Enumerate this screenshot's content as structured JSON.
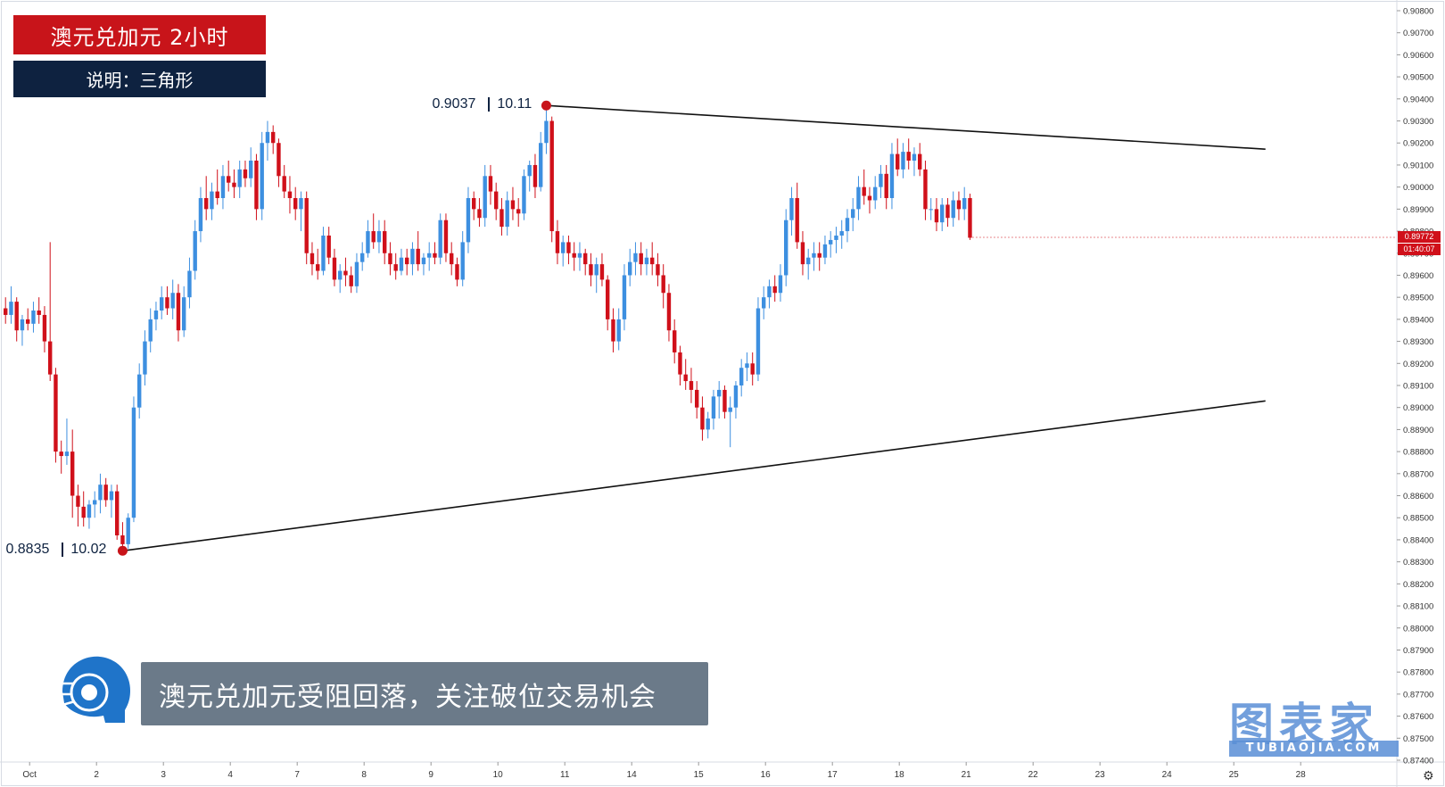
{
  "title": "澳元兑加元 2小时",
  "subtitle": "说明：三角形",
  "caption": "澳元兑加元受阻回落，关注破位交易机会",
  "logo": {
    "main": "图表家",
    "sub": "TUBIAOJIA.COM"
  },
  "annotations": {
    "high": {
      "price": "0.9037",
      "value": "10.11"
    },
    "low": {
      "price": "0.8835",
      "value": "10.02"
    }
  },
  "price_tags": {
    "last": "0.89772",
    "countdown": "01:40:07"
  },
  "colors": {
    "up": "#3d8fe0",
    "down": "#d0101a",
    "title_bg": "#c8141a",
    "sub_bg": "#0e2240"
  },
  "chart_data": {
    "type": "candlestick",
    "symbol": "AUDCAD",
    "timeframe": "2H",
    "y_axis": {
      "min": 0.874,
      "max": 0.908,
      "ticks": [
        "0.90800",
        "0.90700",
        "0.90600",
        "0.90500",
        "0.90400",
        "0.90300",
        "0.90200",
        "0.90100",
        "0.90000",
        "0.89900",
        "0.89800",
        "0.89700",
        "0.89600",
        "0.89500",
        "0.89400",
        "0.89300",
        "0.89200",
        "0.89100",
        "0.89000",
        "0.88900",
        "0.88800",
        "0.88700",
        "0.88600",
        "0.88500",
        "0.88400",
        "0.88300",
        "0.88200",
        "0.88100",
        "0.88000",
        "0.87900",
        "0.87800",
        "0.87700",
        "0.87600",
        "0.87500",
        "0.87400"
      ]
    },
    "x_ticks": [
      "Oct",
      "2",
      "3",
      "4",
      "7",
      "8",
      "9",
      "10",
      "11",
      "14",
      "15",
      "16",
      "17",
      "18",
      "21",
      "22",
      "23",
      "24",
      "25",
      "28"
    ],
    "x_tick_index": [
      0,
      12,
      24,
      36,
      48,
      60,
      72,
      84,
      96,
      108,
      120,
      132,
      144,
      156,
      168,
      180,
      192,
      204,
      216,
      228
    ],
    "candles": [
      [
        0.8945,
        0.895,
        0.8938,
        0.8942
      ],
      [
        0.8942,
        0.8955,
        0.8938,
        0.8948
      ],
      [
        0.8948,
        0.895,
        0.893,
        0.8935
      ],
      [
        0.8935,
        0.8942,
        0.8928,
        0.894
      ],
      [
        0.894,
        0.8945,
        0.8935,
        0.8938
      ],
      [
        0.8938,
        0.8948,
        0.8934,
        0.8944
      ],
      [
        0.8944,
        0.895,
        0.8938,
        0.8942
      ],
      [
        0.8942,
        0.8946,
        0.8925,
        0.893
      ],
      [
        0.893,
        0.8975,
        0.8912,
        0.8915
      ],
      [
        0.8915,
        0.8918,
        0.8875,
        0.888
      ],
      [
        0.888,
        0.8885,
        0.887,
        0.8878
      ],
      [
        0.8878,
        0.8895,
        0.8874,
        0.888
      ],
      [
        0.888,
        0.889,
        0.885,
        0.886
      ],
      [
        0.886,
        0.8865,
        0.8846,
        0.8855
      ],
      [
        0.8855,
        0.8862,
        0.8846,
        0.885
      ],
      [
        0.885,
        0.8858,
        0.8845,
        0.8856
      ],
      [
        0.8856,
        0.8862,
        0.885,
        0.8858
      ],
      [
        0.8858,
        0.887,
        0.8852,
        0.8865
      ],
      [
        0.8865,
        0.8868,
        0.8855,
        0.8858
      ],
      [
        0.8858,
        0.8865,
        0.885,
        0.8862
      ],
      [
        0.8862,
        0.8865,
        0.884,
        0.8842
      ],
      [
        0.8842,
        0.8848,
        0.8835,
        0.8838
      ],
      [
        0.8838,
        0.8852,
        0.8836,
        0.885
      ],
      [
        0.885,
        0.8905,
        0.8848,
        0.89
      ],
      [
        0.89,
        0.892,
        0.8895,
        0.8915
      ],
      [
        0.8915,
        0.8935,
        0.891,
        0.893
      ],
      [
        0.893,
        0.8945,
        0.8925,
        0.894
      ],
      [
        0.894,
        0.8948,
        0.8935,
        0.8944
      ],
      [
        0.8944,
        0.8955,
        0.894,
        0.895
      ],
      [
        0.895,
        0.8955,
        0.8942,
        0.8945
      ],
      [
        0.8945,
        0.8958,
        0.894,
        0.8952
      ],
      [
        0.8952,
        0.8956,
        0.893,
        0.8935
      ],
      [
        0.8935,
        0.8955,
        0.8932,
        0.895
      ],
      [
        0.895,
        0.8968,
        0.8945,
        0.8962
      ],
      [
        0.8962,
        0.8985,
        0.8958,
        0.898
      ],
      [
        0.898,
        0.9,
        0.8975,
        0.8995
      ],
      [
        0.8995,
        0.9005,
        0.8985,
        0.899
      ],
      [
        0.899,
        0.9002,
        0.8985,
        0.8998
      ],
      [
        0.8998,
        0.9008,
        0.8992,
        0.8995
      ],
      [
        0.8995,
        0.901,
        0.899,
        0.9005
      ],
      [
        0.9005,
        0.9012,
        0.8998,
        0.9002
      ],
      [
        0.9002,
        0.9008,
        0.8995,
        0.9
      ],
      [
        0.9,
        0.9012,
        0.8995,
        0.9008
      ],
      [
        0.9008,
        0.9012,
        0.9,
        0.9004
      ],
      [
        0.9004,
        0.9018,
        0.9,
        0.9012
      ],
      [
        0.9012,
        0.9015,
        0.8985,
        0.899
      ],
      [
        0.899,
        0.9025,
        0.8985,
        0.902
      ],
      [
        0.902,
        0.903,
        0.9012,
        0.9025
      ],
      [
        0.9025,
        0.9028,
        0.9015,
        0.902
      ],
      [
        0.902,
        0.9022,
        0.9,
        0.9005
      ],
      [
        0.9005,
        0.901,
        0.8995,
        0.8998
      ],
      [
        0.8998,
        0.9005,
        0.8988,
        0.8995
      ],
      [
        0.8995,
        0.9,
        0.8985,
        0.899
      ],
      [
        0.899,
        0.8998,
        0.898,
        0.8995
      ],
      [
        0.8995,
        0.8998,
        0.8965,
        0.897
      ],
      [
        0.897,
        0.8975,
        0.896,
        0.8965
      ],
      [
        0.8965,
        0.8972,
        0.8958,
        0.8962
      ],
      [
        0.8962,
        0.8982,
        0.896,
        0.8978
      ],
      [
        0.8978,
        0.8982,
        0.8965,
        0.8968
      ],
      [
        0.8968,
        0.8972,
        0.8955,
        0.8958
      ],
      [
        0.8958,
        0.8965,
        0.8952,
        0.8962
      ],
      [
        0.8962,
        0.8968,
        0.8955,
        0.896
      ],
      [
        0.896,
        0.8964,
        0.8952,
        0.8955
      ],
      [
        0.8955,
        0.897,
        0.8952,
        0.8966
      ],
      [
        0.8966,
        0.8975,
        0.8962,
        0.897
      ],
      [
        0.897,
        0.8985,
        0.8968,
        0.898
      ],
      [
        0.898,
        0.8988,
        0.8972,
        0.8975
      ],
      [
        0.8975,
        0.8985,
        0.897,
        0.898
      ],
      [
        0.898,
        0.8985,
        0.8965,
        0.897
      ],
      [
        0.897,
        0.8975,
        0.896,
        0.8965
      ],
      [
        0.8965,
        0.897,
        0.8958,
        0.8962
      ],
      [
        0.8962,
        0.8972,
        0.896,
        0.8968
      ],
      [
        0.8968,
        0.8972,
        0.896,
        0.8965
      ],
      [
        0.8965,
        0.8975,
        0.896,
        0.8972
      ],
      [
        0.8972,
        0.898,
        0.8962,
        0.8965
      ],
      [
        0.8965,
        0.897,
        0.896,
        0.8968
      ],
      [
        0.8968,
        0.8975,
        0.8962,
        0.897
      ],
      [
        0.897,
        0.8975,
        0.8965,
        0.8968
      ],
      [
        0.8968,
        0.8988,
        0.8965,
        0.8985
      ],
      [
        0.8985,
        0.8988,
        0.8966,
        0.897
      ],
      [
        0.897,
        0.8975,
        0.896,
        0.8965
      ],
      [
        0.8965,
        0.8968,
        0.8955,
        0.8958
      ],
      [
        0.8958,
        0.898,
        0.8955,
        0.8975
      ],
      [
        0.8975,
        0.9,
        0.897,
        0.8995
      ],
      [
        0.8995,
        0.8998,
        0.8985,
        0.899
      ],
      [
        0.899,
        0.8995,
        0.8982,
        0.8986
      ],
      [
        0.8986,
        0.901,
        0.8982,
        0.9005
      ],
      [
        0.9005,
        0.901,
        0.8992,
        0.8998
      ],
      [
        0.8998,
        0.9002,
        0.8985,
        0.899
      ],
      [
        0.899,
        0.8995,
        0.8978,
        0.8982
      ],
      [
        0.8982,
        0.8998,
        0.8978,
        0.8994
      ],
      [
        0.8994,
        0.9,
        0.8985,
        0.899
      ],
      [
        0.899,
        0.8995,
        0.8982,
        0.8988
      ],
      [
        0.8988,
        0.9008,
        0.8985,
        0.9005
      ],
      [
        0.9005,
        0.9012,
        0.8998,
        0.901
      ],
      [
        0.901,
        0.9015,
        0.8995,
        0.9
      ],
      [
        0.9,
        0.9025,
        0.8998,
        0.902
      ],
      [
        0.902,
        0.9037,
        0.9015,
        0.903
      ],
      [
        0.903,
        0.9032,
        0.8975,
        0.898
      ],
      [
        0.898,
        0.8985,
        0.8965,
        0.897
      ],
      [
        0.897,
        0.8978,
        0.8964,
        0.8975
      ],
      [
        0.8975,
        0.8978,
        0.8965,
        0.897
      ],
      [
        0.897,
        0.8975,
        0.8962,
        0.8968
      ],
      [
        0.8968,
        0.8975,
        0.8962,
        0.897
      ],
      [
        0.897,
        0.8972,
        0.896,
        0.8965
      ],
      [
        0.8965,
        0.897,
        0.8955,
        0.896
      ],
      [
        0.896,
        0.8968,
        0.8952,
        0.8965
      ],
      [
        0.8965,
        0.897,
        0.8955,
        0.8958
      ],
      [
        0.8958,
        0.896,
        0.8935,
        0.894
      ],
      [
        0.894,
        0.8945,
        0.8925,
        0.893
      ],
      [
        0.893,
        0.8945,
        0.8926,
        0.894
      ],
      [
        0.894,
        0.8965,
        0.8935,
        0.896
      ],
      [
        0.896,
        0.8972,
        0.8955,
        0.8966
      ],
      [
        0.8966,
        0.8975,
        0.896,
        0.897
      ],
      [
        0.897,
        0.8975,
        0.896,
        0.8965
      ],
      [
        0.8965,
        0.8972,
        0.896,
        0.8968
      ],
      [
        0.8968,
        0.8975,
        0.896,
        0.8965
      ],
      [
        0.8965,
        0.897,
        0.8955,
        0.896
      ],
      [
        0.896,
        0.8965,
        0.8945,
        0.8952
      ],
      [
        0.8952,
        0.8956,
        0.893,
        0.8935
      ],
      [
        0.8935,
        0.894,
        0.892,
        0.8925
      ],
      [
        0.8925,
        0.8928,
        0.891,
        0.8915
      ],
      [
        0.8915,
        0.8922,
        0.8908,
        0.8912
      ],
      [
        0.8912,
        0.8918,
        0.8902,
        0.8908
      ],
      [
        0.8908,
        0.8912,
        0.8895,
        0.89
      ],
      [
        0.89,
        0.8905,
        0.8885,
        0.889
      ],
      [
        0.889,
        0.8898,
        0.8886,
        0.8895
      ],
      [
        0.8895,
        0.8908,
        0.889,
        0.8905
      ],
      [
        0.8905,
        0.8912,
        0.8895,
        0.8908
      ],
      [
        0.8908,
        0.891,
        0.8895,
        0.8898
      ],
      [
        0.8898,
        0.8905,
        0.8882,
        0.89
      ],
      [
        0.89,
        0.8912,
        0.8895,
        0.891
      ],
      [
        0.891,
        0.8922,
        0.8905,
        0.8918
      ],
      [
        0.8918,
        0.8925,
        0.8912,
        0.892
      ],
      [
        0.892,
        0.8925,
        0.891,
        0.8915
      ],
      [
        0.8915,
        0.895,
        0.8912,
        0.8945
      ],
      [
        0.8945,
        0.8955,
        0.894,
        0.895
      ],
      [
        0.895,
        0.8958,
        0.8945,
        0.8955
      ],
      [
        0.8955,
        0.896,
        0.8948,
        0.8952
      ],
      [
        0.8952,
        0.8965,
        0.8948,
        0.896
      ],
      [
        0.896,
        0.899,
        0.8955,
        0.8985
      ],
      [
        0.8985,
        0.9,
        0.8978,
        0.8995
      ],
      [
        0.8995,
        0.9002,
        0.8972,
        0.8975
      ],
      [
        0.8975,
        0.898,
        0.896,
        0.8965
      ],
      [
        0.8965,
        0.8972,
        0.8958,
        0.8968
      ],
      [
        0.8968,
        0.8975,
        0.8962,
        0.897
      ],
      [
        0.897,
        0.8975,
        0.8962,
        0.8968
      ],
      [
        0.8968,
        0.8978,
        0.8965,
        0.8974
      ],
      [
        0.8974,
        0.898,
        0.8968,
        0.8976
      ],
      [
        0.8976,
        0.8982,
        0.897,
        0.8978
      ],
      [
        0.8978,
        0.8985,
        0.8972,
        0.898
      ],
      [
        0.898,
        0.899,
        0.8975,
        0.8986
      ],
      [
        0.8986,
        0.8995,
        0.898,
        0.899
      ],
      [
        0.899,
        0.9005,
        0.8985,
        0.9
      ],
      [
        0.9,
        0.9008,
        0.8992,
        0.8996
      ],
      [
        0.8996,
        0.9,
        0.8988,
        0.8994
      ],
      [
        0.8994,
        0.9005,
        0.899,
        0.9
      ],
      [
        0.9,
        0.901,
        0.8995,
        0.9006
      ],
      [
        0.9006,
        0.901,
        0.899,
        0.8995
      ],
      [
        0.8995,
        0.902,
        0.899,
        0.9015
      ],
      [
        0.9015,
        0.9022,
        0.9005,
        0.9008
      ],
      [
        0.9008,
        0.902,
        0.9004,
        0.9016
      ],
      [
        0.9016,
        0.9022,
        0.9008,
        0.9012
      ],
      [
        0.9012,
        0.9018,
        0.9005,
        0.9015
      ],
      [
        0.9015,
        0.902,
        0.9005,
        0.9008
      ],
      [
        0.9008,
        0.9012,
        0.8985,
        0.899
      ],
      [
        0.899,
        0.8995,
        0.8985,
        0.899
      ],
      [
        0.899,
        0.8995,
        0.898,
        0.8984
      ],
      [
        0.8984,
        0.8995,
        0.898,
        0.8992
      ],
      [
        0.8992,
        0.8995,
        0.8982,
        0.8986
      ],
      [
        0.8986,
        0.8998,
        0.8982,
        0.8994
      ],
      [
        0.8994,
        0.8998,
        0.8985,
        0.899
      ],
      [
        0.899,
        0.9,
        0.8985,
        0.8995
      ],
      [
        0.8995,
        0.8997,
        0.8976,
        0.8977
      ]
    ],
    "trendlines": [
      {
        "name": "upper",
        "from": {
          "index": 97,
          "price": 0.9037
        },
        "to": {
          "index": 226,
          "price": 0.90172
        }
      },
      {
        "name": "lower",
        "from": {
          "index": 21,
          "price": 0.8835
        },
        "to": {
          "index": 226,
          "price": 0.8903
        }
      }
    ],
    "last_price": 0.89772
  }
}
